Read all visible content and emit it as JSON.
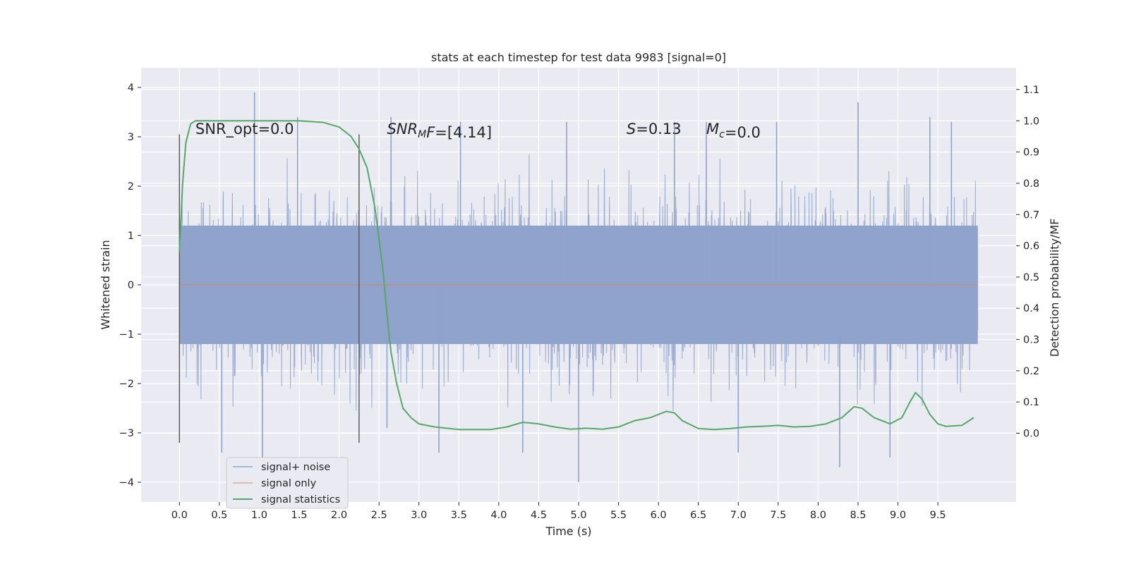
{
  "chart_data": {
    "type": "line",
    "title": "stats at each timestep for test data 9983 [signal=0]",
    "xlabel": "Time (s)",
    "ylabel": "Whitened strain",
    "ylabel_right": "Detection probability/MF",
    "xlim": [
      -0.48,
      10.48
    ],
    "ylim": [
      -4.4,
      4.4
    ],
    "ylim_right": [
      -0.22,
      1.17
    ],
    "x_ticks": [
      0.0,
      0.5,
      1.0,
      1.5,
      2.0,
      2.5,
      3.0,
      3.5,
      4.0,
      4.5,
      5.0,
      5.5,
      6.0,
      6.5,
      7.0,
      7.5,
      8.0,
      8.5,
      9.0,
      9.5
    ],
    "x_tick_labels": [
      "0.0",
      "0.5",
      "1.0",
      "1.5",
      "2.0",
      "2.5",
      "3.0",
      "3.5",
      "4.0",
      "4.5",
      "5.0",
      "5.5",
      "6.0",
      "6.5",
      "7.0",
      "7.5",
      "8.0",
      "8.5",
      "9.0",
      "9.5"
    ],
    "y_ticks": [
      -4,
      -3,
      -2,
      -1,
      0,
      1,
      2,
      3,
      4
    ],
    "y_tick_labels": [
      "−4",
      "−3",
      "−2",
      "−1",
      "0",
      "1",
      "2",
      "3",
      "4"
    ],
    "y_ticks_right": [
      0.0,
      0.1,
      0.2,
      0.3,
      0.4,
      0.5,
      0.6,
      0.7,
      0.8,
      0.9,
      1.0,
      1.1
    ],
    "y_tick_labels_right": [
      "0.0",
      "0.1",
      "0.2",
      "0.3",
      "0.4",
      "0.5",
      "0.6",
      "0.7",
      "0.8",
      "0.9",
      "1.0",
      "1.1"
    ],
    "grid": true,
    "legend": "lower-left",
    "vlines": [
      0.0,
      2.25
    ],
    "annotations": [
      {
        "parts": [
          {
            "t": "SNR_opt=0.0",
            "i": false
          }
        ],
        "x": 0.2
      },
      {
        "parts": [
          {
            "t": "SNR",
            "i": true
          },
          {
            "t": "M",
            "i": true,
            "sub": true
          },
          {
            "t": "F",
            "i": true
          },
          {
            "t": "=[4.14]",
            "i": false
          }
        ],
        "x": 2.6
      },
      {
        "parts": [
          {
            "t": "S",
            "i": true
          },
          {
            "t": "=0.13",
            "i": false
          }
        ],
        "x": 5.6
      },
      {
        "parts": [
          {
            "t": "M",
            "i": true
          },
          {
            "t": "c",
            "i": true,
            "sub": true
          },
          {
            "t": "=0.0",
            "i": false
          }
        ],
        "x": 6.6
      }
    ],
    "series": [
      {
        "name": "signal+ noise",
        "color": "#8fa3cc",
        "x_range": [
          0.0,
          10.0
        ],
        "envelope_outer": 2.3,
        "envelope_core": 1.2,
        "spikes": [
          [
            0.94,
            3.9
          ],
          [
            1.04,
            -3.5
          ],
          [
            1.48,
            3.4
          ],
          [
            0.53,
            -3.4
          ],
          [
            2.65,
            3.4
          ],
          [
            3.25,
            -3.4
          ],
          [
            3.52,
            3.3
          ],
          [
            4.85,
            3.3
          ],
          [
            5.0,
            -4.0
          ],
          [
            6.2,
            3.3
          ],
          [
            6.6,
            3.3
          ],
          [
            7.48,
            3.3
          ],
          [
            8.27,
            -3.7
          ],
          [
            8.5,
            3.7
          ],
          [
            8.9,
            -3.5
          ],
          [
            9.4,
            3.4
          ],
          [
            9.67,
            3.3
          ],
          [
            2.6,
            -2.9
          ],
          [
            7.0,
            -3.4
          ],
          [
            4.3,
            -3.4
          ]
        ]
      },
      {
        "name": "signal only",
        "color": "#dd8452",
        "x": [
          0.0,
          10.0
        ],
        "y": [
          0.0,
          0.0
        ]
      },
      {
        "name": "signal statistics",
        "color": "#55a868",
        "axis": "right",
        "x": [
          0.0,
          0.04,
          0.08,
          0.14,
          0.2,
          0.3,
          0.5,
          1.0,
          1.5,
          1.8,
          2.0,
          2.15,
          2.25,
          2.35,
          2.45,
          2.55,
          2.6,
          2.65,
          2.72,
          2.8,
          2.9,
          3.0,
          3.2,
          3.5,
          3.9,
          4.1,
          4.3,
          4.5,
          4.7,
          4.9,
          5.1,
          5.3,
          5.5,
          5.7,
          5.9,
          6.1,
          6.2,
          6.3,
          6.5,
          6.7,
          6.9,
          7.1,
          7.3,
          7.5,
          7.7,
          7.9,
          8.1,
          8.3,
          8.45,
          8.55,
          8.7,
          8.9,
          9.05,
          9.15,
          9.22,
          9.3,
          9.4,
          9.5,
          9.6,
          9.8,
          9.95
        ],
        "y": [
          0.58,
          0.8,
          0.93,
          0.99,
          1.0,
          1.0,
          1.0,
          1.0,
          1.0,
          0.995,
          0.98,
          0.95,
          0.91,
          0.85,
          0.72,
          0.52,
          0.38,
          0.26,
          0.16,
          0.08,
          0.05,
          0.03,
          0.02,
          0.012,
          0.012,
          0.02,
          0.035,
          0.03,
          0.02,
          0.013,
          0.016,
          0.013,
          0.02,
          0.04,
          0.05,
          0.07,
          0.065,
          0.04,
          0.015,
          0.012,
          0.015,
          0.02,
          0.022,
          0.025,
          0.02,
          0.022,
          0.03,
          0.05,
          0.085,
          0.08,
          0.05,
          0.03,
          0.05,
          0.1,
          0.13,
          0.11,
          0.06,
          0.03,
          0.022,
          0.025,
          0.05
        ]
      }
    ]
  }
}
